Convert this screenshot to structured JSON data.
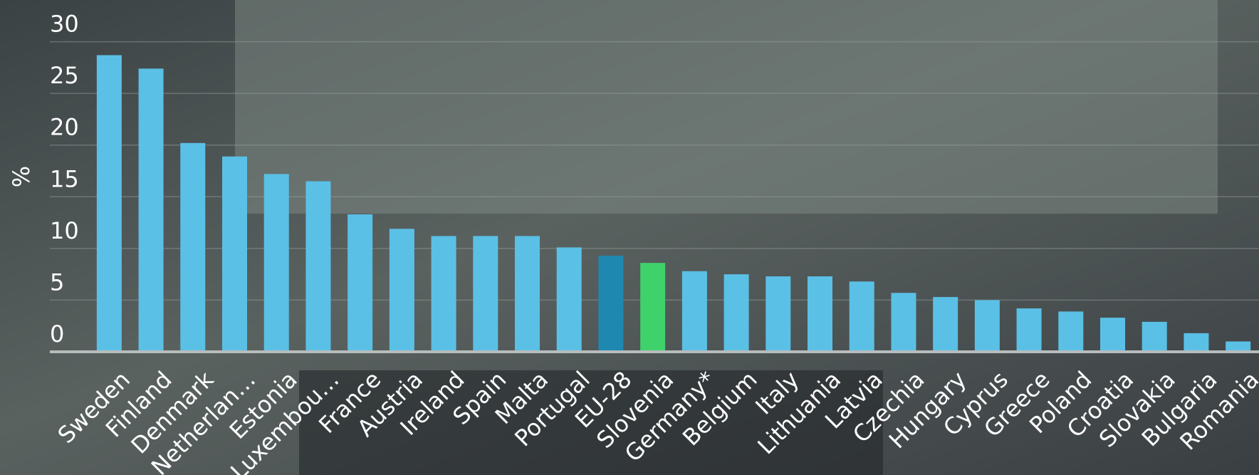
{
  "chart_data": {
    "type": "bar",
    "y_label": "%",
    "categories": [
      "Sweden",
      "Finland",
      "Denmark",
      "Netherlan…",
      "Estonia",
      "Luxembou…",
      "France",
      "Austria",
      "Ireland",
      "Spain",
      "Malta",
      "Portugal",
      "EU-28",
      "Slovenia",
      "Germany*",
      "Belgium",
      "Italy",
      "Lithuania",
      "Latvia",
      "Czechia",
      "Hungary",
      "Cyprus",
      "Greece",
      "Poland",
      "Croatia",
      "Slovakia",
      "Bulgaria",
      "Romania"
    ],
    "values": [
      28.7,
      27.4,
      20.2,
      18.9,
      17.2,
      16.5,
      13.3,
      11.9,
      11.2,
      11.2,
      11.2,
      10.1,
      9.3,
      8.6,
      7.8,
      7.5,
      7.3,
      7.3,
      6.8,
      5.7,
      5.3,
      5.0,
      4.2,
      3.9,
      3.3,
      2.9,
      1.8,
      1.0
    ],
    "colors": [
      "#5bc0e5",
      "#5bc0e5",
      "#5bc0e5",
      "#5bc0e5",
      "#5bc0e5",
      "#5bc0e5",
      "#5bc0e5",
      "#5bc0e5",
      "#5bc0e5",
      "#5bc0e5",
      "#5bc0e5",
      "#5bc0e5",
      "#1f88b0",
      "#3fd16a",
      "#5bc0e5",
      "#5bc0e5",
      "#5bc0e5",
      "#5bc0e5",
      "#5bc0e5",
      "#5bc0e5",
      "#5bc0e5",
      "#5bc0e5",
      "#5bc0e5",
      "#5bc0e5",
      "#5bc0e5",
      "#5bc0e5",
      "#5bc0e5",
      "#5bc0e5"
    ],
    "ylim": [
      0,
      30
    ],
    "yticks": [
      0,
      5,
      10,
      15,
      20,
      25,
      30
    ],
    "grid": true
  }
}
